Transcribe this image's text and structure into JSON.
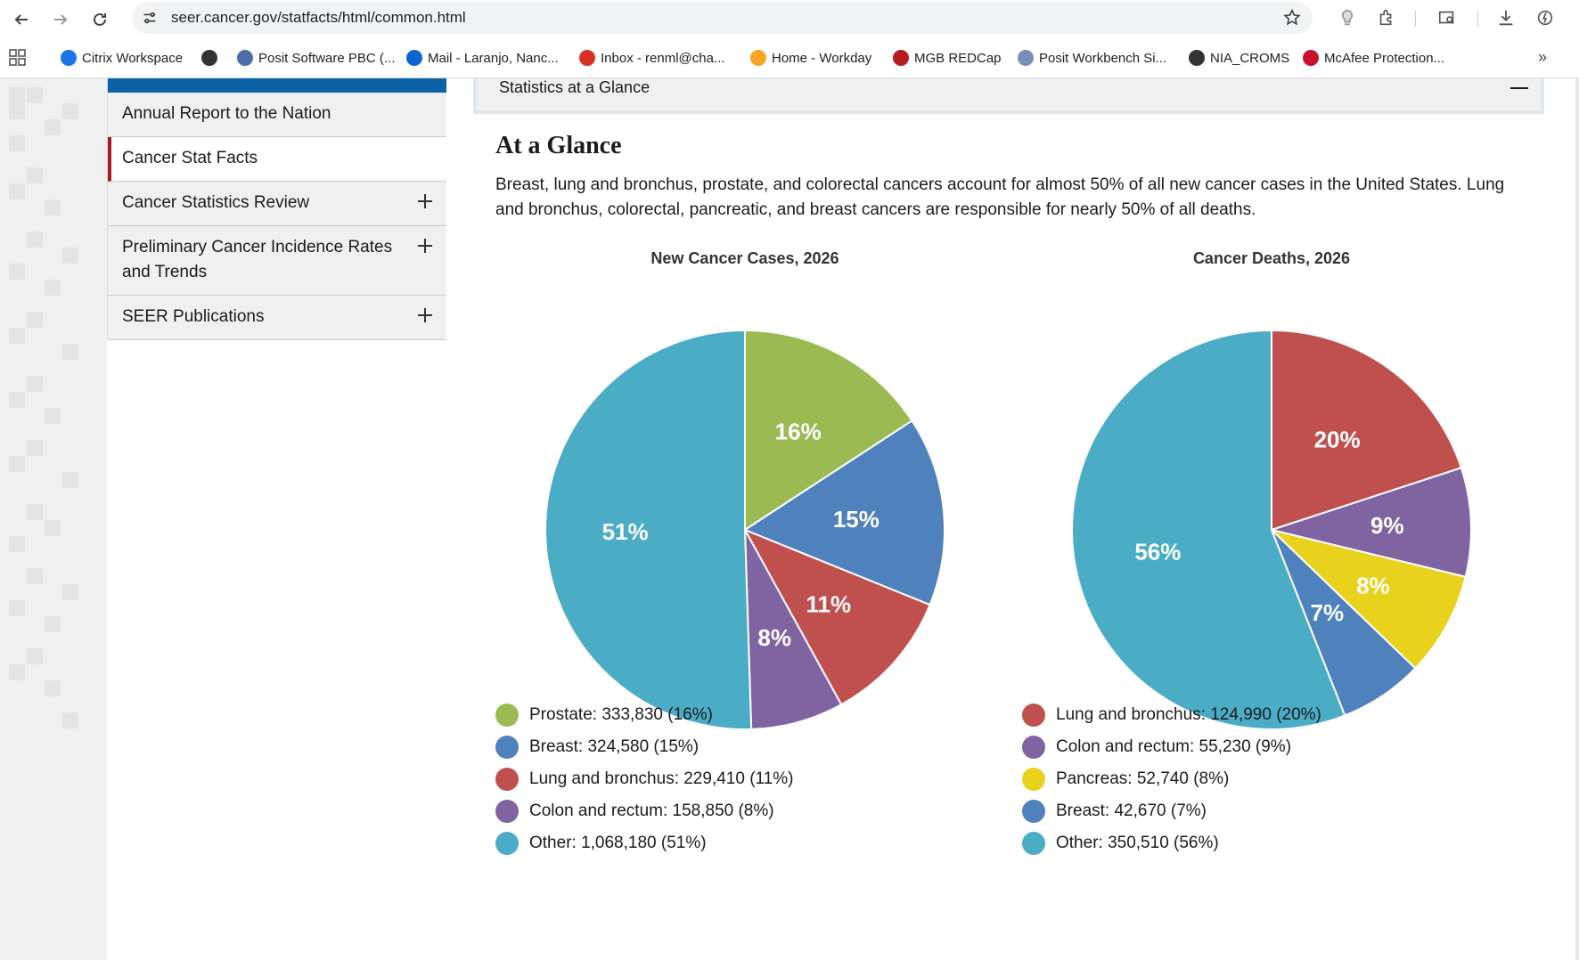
{
  "browser": {
    "url": "seer.cancer.gov/statfacts/html/common.html",
    "bookmarks": [
      {
        "label": "Citrix Workspace",
        "icon": "citrix-icon",
        "color": "#1a73e8"
      },
      {
        "label": "",
        "icon": "globe-icon",
        "color": "#333333"
      },
      {
        "label": "Posit Software PBC (...",
        "icon": "posit-icon",
        "color": "#4a6fa5"
      },
      {
        "label": "Mail - Laranjo, Nanc...",
        "icon": "outlook-icon",
        "color": "#0a64d2"
      },
      {
        "label": "Inbox - renml@cha...",
        "icon": "gmail-icon",
        "color": "#d93025"
      },
      {
        "label": "Home - Workday",
        "icon": "workday-icon",
        "color": "#f5a623"
      },
      {
        "label": "MGB REDCap",
        "icon": "redcap-icon",
        "color": "#b71c1c"
      },
      {
        "label": "Posit Workbench Si...",
        "icon": "posit-workbench-icon",
        "color": "#7a8fb5"
      },
      {
        "label": "NIA_CROMS",
        "icon": "globe-icon",
        "color": "#333333"
      },
      {
        "label": "McAfee Protection...",
        "icon": "mcafee-icon",
        "color": "#c8102e"
      }
    ],
    "more_label": "»"
  },
  "sidenav": {
    "items": [
      {
        "label": "Annual Report to the Nation",
        "expandable": false,
        "active": false
      },
      {
        "label": "Cancer Stat Facts",
        "expandable": false,
        "active": true
      },
      {
        "label": "Cancer Statistics Review",
        "expandable": true,
        "active": false
      },
      {
        "label": "Preliminary Cancer Incidence Rates and Trends",
        "expandable": true,
        "active": false
      },
      {
        "label": "SEER Publications",
        "expandable": true,
        "active": false
      }
    ]
  },
  "accordion": {
    "title": "Statistics at a Glance"
  },
  "content": {
    "heading": "At a Glance",
    "intro": "Breast, lung and bronchus, prostate, and colorectal cancers account for almost 50% of all new cancer cases in the United States. Lung and bronchus, colorectal, pancreatic, and breast cancers are responsible for nearly 50% of all deaths."
  },
  "chart_data": [
    {
      "type": "pie",
      "title": "New Cancer Cases, 2026",
      "slices": [
        {
          "label": "Prostate",
          "value": 333830,
          "percent": 16,
          "pct_label": "16%",
          "legend": "Prostate: 333,830 (16%)",
          "color": "#9bbb52"
        },
        {
          "label": "Breast",
          "value": 324580,
          "percent": 15,
          "pct_label": "15%",
          "legend": "Breast: 324,580 (15%)",
          "color": "#4f81bd"
        },
        {
          "label": "Lung and bronchus",
          "value": 229410,
          "percent": 11,
          "pct_label": "11%",
          "legend": "Lung and bronchus: 229,410 (11%)",
          "color": "#c0504d"
        },
        {
          "label": "Colon and rectum",
          "value": 158850,
          "percent": 8,
          "pct_label": "8%",
          "legend": "Colon and rectum: 158,850 (8%)",
          "color": "#8064a2"
        },
        {
          "label": "Other",
          "value": 1068180,
          "percent": 51,
          "pct_label": "51%",
          "legend": "Other: 1,068,180 (51%)",
          "color": "#4bacc6"
        }
      ]
    },
    {
      "type": "pie",
      "title": "Cancer Deaths, 2026",
      "slices": [
        {
          "label": "Lung and bronchus",
          "value": 124990,
          "percent": 20,
          "pct_label": "20%",
          "legend": "Lung and bronchus: 124,990 (20%)",
          "color": "#c0504d"
        },
        {
          "label": "Colon and rectum",
          "value": 55230,
          "percent": 9,
          "pct_label": "9%",
          "legend": "Colon and rectum: 55,230 (9%)",
          "color": "#8064a2"
        },
        {
          "label": "Pancreas",
          "value": 52740,
          "percent": 8,
          "pct_label": "8%",
          "legend": "Pancreas: 52,740 (8%)",
          "color": "#e8d21d"
        },
        {
          "label": "Breast",
          "value": 42670,
          "percent": 7,
          "pct_label": "7%",
          "legend": "Breast: 42,670 (7%)",
          "color": "#4f81bd"
        },
        {
          "label": "Other",
          "value": 350510,
          "percent": 56,
          "pct_label": "56%",
          "legend": "Other: 350,510 (56%)",
          "color": "#4bacc6"
        }
      ]
    }
  ]
}
